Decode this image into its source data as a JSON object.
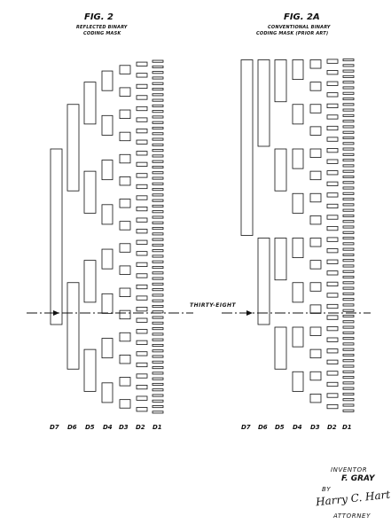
{
  "fig2": {
    "title": "FIG. 2",
    "subtitle_line1": "REFLECTED BINARY",
    "subtitle_line2": "CODING MASK",
    "columns": [
      "D7",
      "D6",
      "D5",
      "D4",
      "D3",
      "D2",
      "D1"
    ]
  },
  "fig2a": {
    "title": "FIG. 2A",
    "subtitle_line1": "CONVENTIONAL BINARY",
    "subtitle_line2": "CODING MASK (PRIOR ART)",
    "columns": [
      "D7",
      "D6",
      "D5",
      "D4",
      "D3",
      "D2",
      "D1"
    ]
  },
  "scan_label": "THIRTY-EIGHT",
  "inventor": {
    "heading": "INVENTOR",
    "name": "F. GRAY",
    "by": "BY",
    "signature": "Harry C. Hart",
    "role": "ATTORNEY"
  },
  "colors": {
    "ink": "#111111",
    "paper": "#ffffff"
  }
}
